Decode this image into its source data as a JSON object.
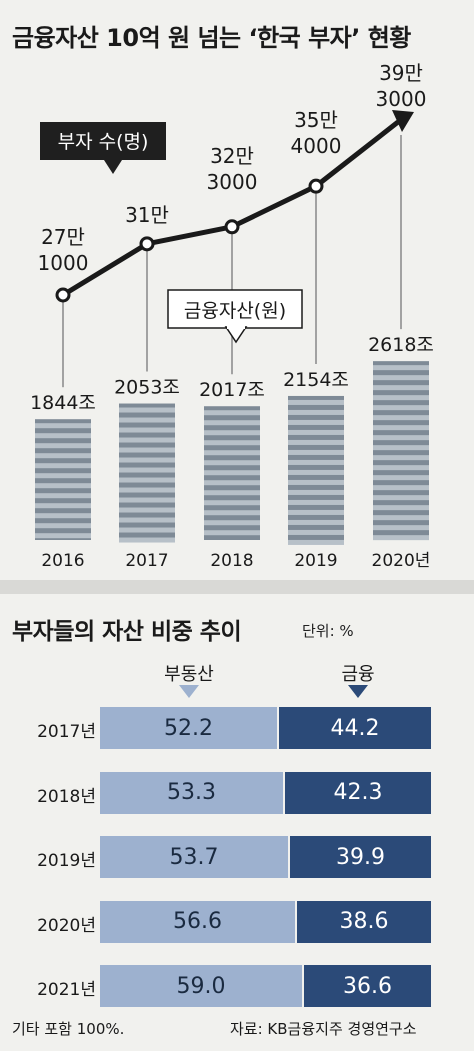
{
  "title": "금융자산 10억 원 넘는 ‘한국 부자’ 현황",
  "chart_data": [
    {
      "type": "line",
      "name_label": "부자 수(명)",
      "categories": [
        "2016",
        "2017",
        "2018",
        "2019",
        "2020년"
      ],
      "series": [
        {
          "name": "부자 수(명)",
          "values": [
            271000,
            310000,
            323000,
            354000,
            393000
          ],
          "labels": [
            [
              "27만",
              "1000"
            ],
            [
              "31만"
            ],
            [
              "32만",
              "3000"
            ],
            [
              "35만",
              "4000"
            ],
            [
              "39만",
              "3000"
            ]
          ]
        }
      ]
    },
    {
      "type": "bar",
      "name_label": "금융자산(원)",
      "categories": [
        "2016",
        "2017",
        "2018",
        "2019",
        "2020년"
      ],
      "series": [
        {
          "name": "금융자산(원)",
          "values": [
            1844,
            2053,
            2017,
            2154,
            2618
          ],
          "labels": [
            "1844조",
            "2053조",
            "2017조",
            "2154조",
            "2618조"
          ]
        }
      ]
    },
    {
      "type": "bar",
      "stacked": "horizontal-100",
      "title": "부자들의 자산 비중 추이",
      "unit": "단위: %",
      "categories": [
        "2017년",
        "2018년",
        "2019년",
        "2020년",
        "2021년"
      ],
      "series": [
        {
          "name": "부동산",
          "values": [
            52.2,
            53.3,
            53.7,
            56.6,
            59.0
          ],
          "labels": [
            "52.2",
            "53.3",
            "53.7",
            "56.6",
            "59.0"
          ],
          "color": "#9db1cf"
        },
        {
          "name": "금융",
          "values": [
            44.2,
            42.3,
            39.9,
            38.6,
            36.6
          ],
          "labels": [
            "44.2",
            "42.3",
            "39.9",
            "38.6",
            "36.6"
          ],
          "color": "#2b4a78"
        }
      ],
      "note": "기타 포함 100%.",
      "source": "자료: KB금융지주 경영연구소"
    }
  ]
}
